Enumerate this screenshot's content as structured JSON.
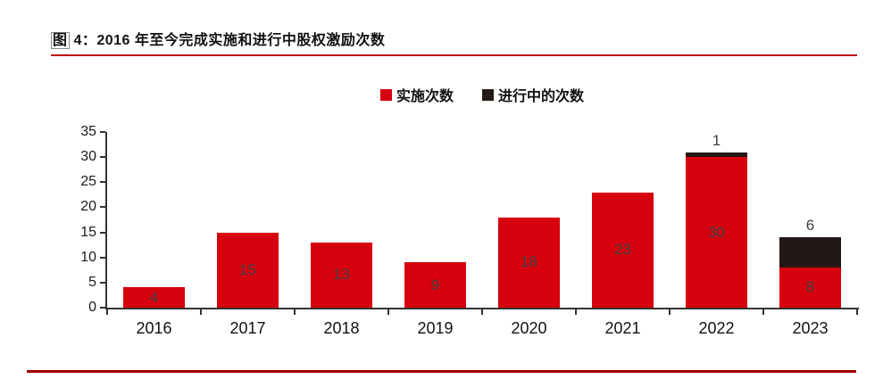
{
  "header": {
    "title_prefix": "图",
    "title_rest": " 4：2016 年至今完成实施和进行中股权激励次数"
  },
  "chart_data": {
    "type": "bar",
    "stacked": true,
    "title": "2016 年至今完成实施和进行中股权激励次数",
    "categories": [
      "2016",
      "2017",
      "2018",
      "2019",
      "2020",
      "2021",
      "2022",
      "2023"
    ],
    "series": [
      {
        "name": "实施次数",
        "color": "#d7000f",
        "values": [
          4,
          15,
          13,
          9,
          18,
          23,
          30,
          8
        ]
      },
      {
        "name": "进行中的次数",
        "color": "#231815",
        "values": [
          0,
          0,
          0,
          0,
          0,
          0,
          1,
          6
        ]
      }
    ],
    "ylim": [
      0,
      35
    ],
    "ytick_step": 5,
    "yticks": [
      0,
      5,
      10,
      15,
      20,
      25,
      30,
      35
    ],
    "legend_position": "top-center",
    "grid": false,
    "xlabel": "",
    "ylabel": "",
    "data_label_color": "#404040"
  },
  "colors": {
    "bar_red": "#d7000f",
    "bar_black": "#231815",
    "axis": "#333333",
    "title_underline": "#c00000",
    "bottom_rule": "#a00000"
  }
}
